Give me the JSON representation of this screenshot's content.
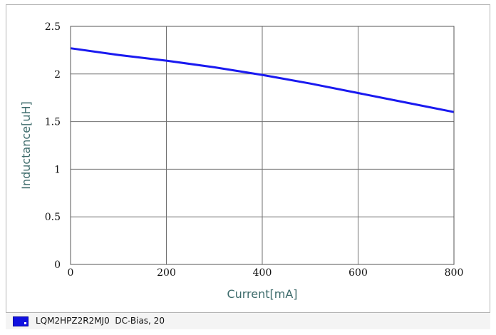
{
  "chart_data": {
    "type": "line",
    "xlabel": "Current[mA]",
    "ylabel": "Inductance[uH]",
    "xlim": [
      0,
      800
    ],
    "ylim": [
      0,
      2.5
    ],
    "x_ticks": [
      "0",
      "200",
      "400",
      "600",
      "800"
    ],
    "y_ticks": [
      "0",
      "0.5",
      "1",
      "1.5",
      "2",
      "2.5"
    ],
    "grid": true,
    "legend_position": "bottom",
    "series": [
      {
        "name": "LQM2HPZ2R2MJ0  DC-Bias, 20",
        "color": "#1a1af0",
        "x": [
          0,
          100,
          200,
          300,
          400,
          500,
          600,
          700,
          800
        ],
        "y": [
          2.27,
          2.2,
          2.14,
          2.07,
          1.99,
          1.9,
          1.8,
          1.7,
          1.6
        ]
      }
    ]
  },
  "legend": {
    "label": "LQM2HPZ2R2MJ0  DC-Bias, 20",
    "swatch_color": "#1010e0"
  }
}
